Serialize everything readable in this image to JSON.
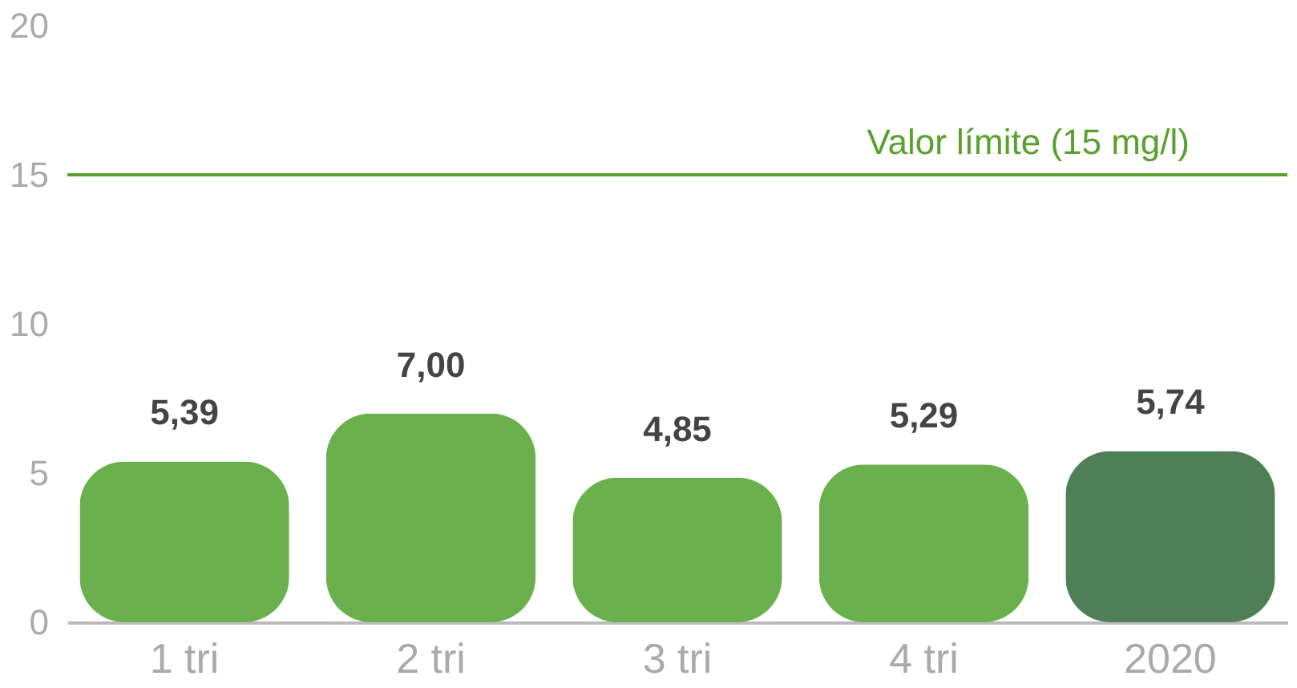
{
  "chart_data": {
    "type": "bar",
    "categories": [
      "1 tri",
      "2 tri",
      "3 tri",
      "4 tri",
      "2020"
    ],
    "values": [
      5.39,
      7.0,
      4.85,
      5.29,
      5.74
    ],
    "colors": [
      "#6ab04c",
      "#6ab04c",
      "#6ab04c",
      "#6ab04c",
      "#4f7f57"
    ],
    "value_labels": [
      "5,39",
      "7,00",
      "4,85",
      "5,29",
      "5,74"
    ],
    "ylim": [
      0,
      20
    ],
    "yticks": [
      0,
      5,
      10,
      15,
      20
    ],
    "grid": false,
    "ref_lines": [
      {
        "axis": "y",
        "value": 15,
        "label": "Valor límite (15 mg/l)",
        "color": "#5aa02c",
        "line_style": "solid"
      }
    ]
  }
}
